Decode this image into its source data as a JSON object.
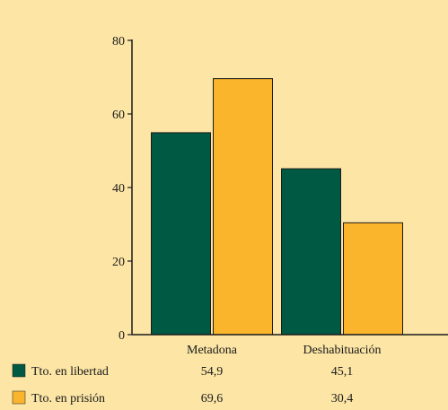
{
  "chart_data": {
    "type": "bar",
    "categories": [
      "Metadona",
      "Deshabituación"
    ],
    "series": [
      {
        "name": "Tto. en libertad",
        "values": [
          54.9,
          45.1
        ],
        "labels": [
          "54,9",
          "45,1"
        ],
        "color": "#005943"
      },
      {
        "name": "Tto. en prisión",
        "values": [
          69.6,
          30.4
        ],
        "labels": [
          "69,6",
          "30,4"
        ],
        "color": "#fbb52c"
      }
    ],
    "ylim": [
      0,
      80
    ],
    "yticks": [
      0,
      20,
      40,
      60,
      80
    ],
    "ytick_labels": [
      "0",
      "20",
      "40",
      "60",
      "80"
    ],
    "title": "",
    "xlabel": "",
    "ylabel": "",
    "grid": false,
    "legend": "bottom-left table"
  }
}
